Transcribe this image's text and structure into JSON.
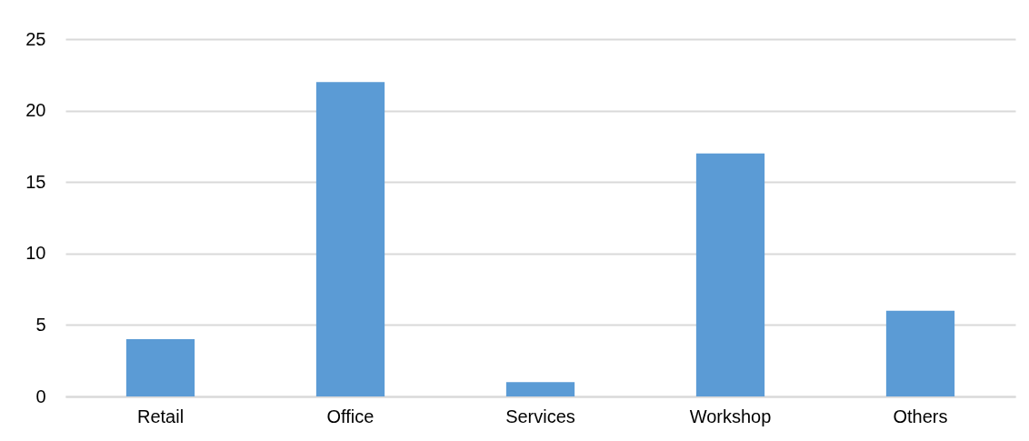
{
  "chart_data": {
    "type": "bar",
    "categories": [
      "Retail",
      "Office",
      "Services",
      "Workshop",
      "Others"
    ],
    "values": [
      4,
      22,
      1,
      17,
      6
    ],
    "color": "#5b9bd5",
    "ylim": [
      0,
      25
    ],
    "yticks": [
      0,
      5,
      10,
      15,
      20,
      25
    ],
    "grid": "y"
  }
}
